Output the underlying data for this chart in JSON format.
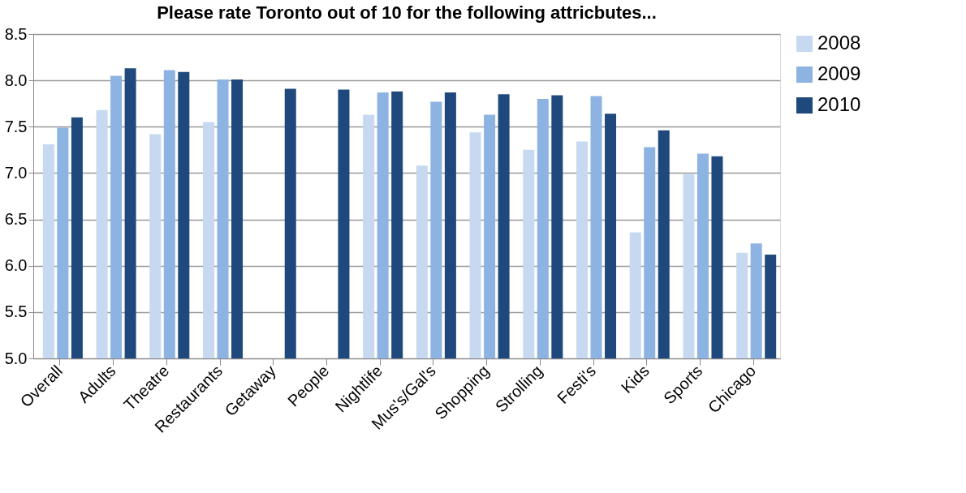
{
  "chart_data": {
    "type": "bar",
    "title": "Please rate Toronto out of 10 for the following attricbutes...",
    "categories": [
      "Overall",
      "Adults",
      "Theatre",
      "Restaurants",
      "Getaway",
      "People",
      "Nightlife",
      "Mus's/Gal's",
      "Shopping",
      "Strolling",
      "Festi's",
      "Kids",
      "Sports",
      "Chicago"
    ],
    "series": [
      {
        "name": "2008",
        "color": "#c6d9f1",
        "values": [
          7.31,
          7.68,
          7.42,
          7.55,
          null,
          null,
          7.63,
          7.08,
          7.44,
          7.25,
          7.34,
          6.36,
          6.99,
          6.14
        ]
      },
      {
        "name": "2009",
        "color": "#8db3e2",
        "values": [
          7.49,
          8.05,
          8.11,
          8.01,
          null,
          null,
          7.87,
          7.77,
          7.63,
          7.8,
          7.83,
          7.28,
          7.21,
          6.24
        ]
      },
      {
        "name": "2010",
        "color": "#1f497d",
        "values": [
          7.6,
          8.13,
          8.09,
          8.01,
          7.91,
          7.9,
          7.88,
          7.87,
          7.85,
          7.84,
          7.64,
          7.46,
          7.18,
          6.12
        ]
      }
    ],
    "ylim": [
      5.0,
      8.5
    ],
    "yticks": [
      {
        "value": 5,
        "label": "5.0"
      },
      {
        "value": 5.5,
        "label": "5.5"
      },
      {
        "value": 6,
        "label": "6.0"
      },
      {
        "value": 6.5,
        "label": "6.5"
      },
      {
        "value": 7,
        "label": "7.0"
      },
      {
        "value": 7.5,
        "label": "7.5"
      },
      {
        "value": 8,
        "label": "8.0"
      },
      {
        "value": 8.5,
        "label": "8.5"
      }
    ],
    "grid": "y",
    "legend": "right"
  }
}
